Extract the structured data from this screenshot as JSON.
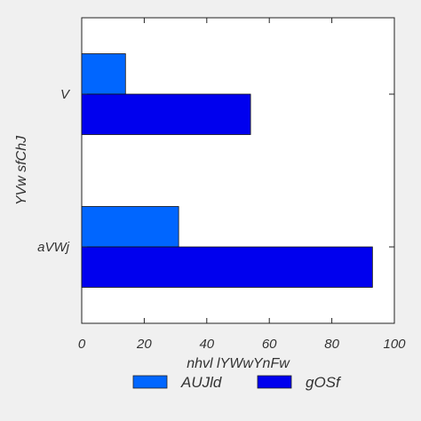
{
  "chart_data": {
    "type": "bar",
    "orientation": "horizontal",
    "categories": [
      "V",
      "aVWj"
    ],
    "series": [
      {
        "name": "AUJld",
        "values": [
          14,
          31
        ],
        "color": "#0066ff"
      },
      {
        "name": "gOSf",
        "values": [
          54,
          93
        ],
        "color": "#0000ee"
      }
    ],
    "xlabel": "nhvl lYWwYnFw",
    "ylabel": "YVw sfChJ",
    "xlim": [
      0,
      100
    ],
    "xticks": [
      0,
      20,
      40,
      60,
      80,
      100
    ],
    "tick_labels": [
      "0",
      "20",
      "40",
      "60",
      "80",
      "100"
    ],
    "grid": false,
    "legend_position": "bottom-center"
  }
}
